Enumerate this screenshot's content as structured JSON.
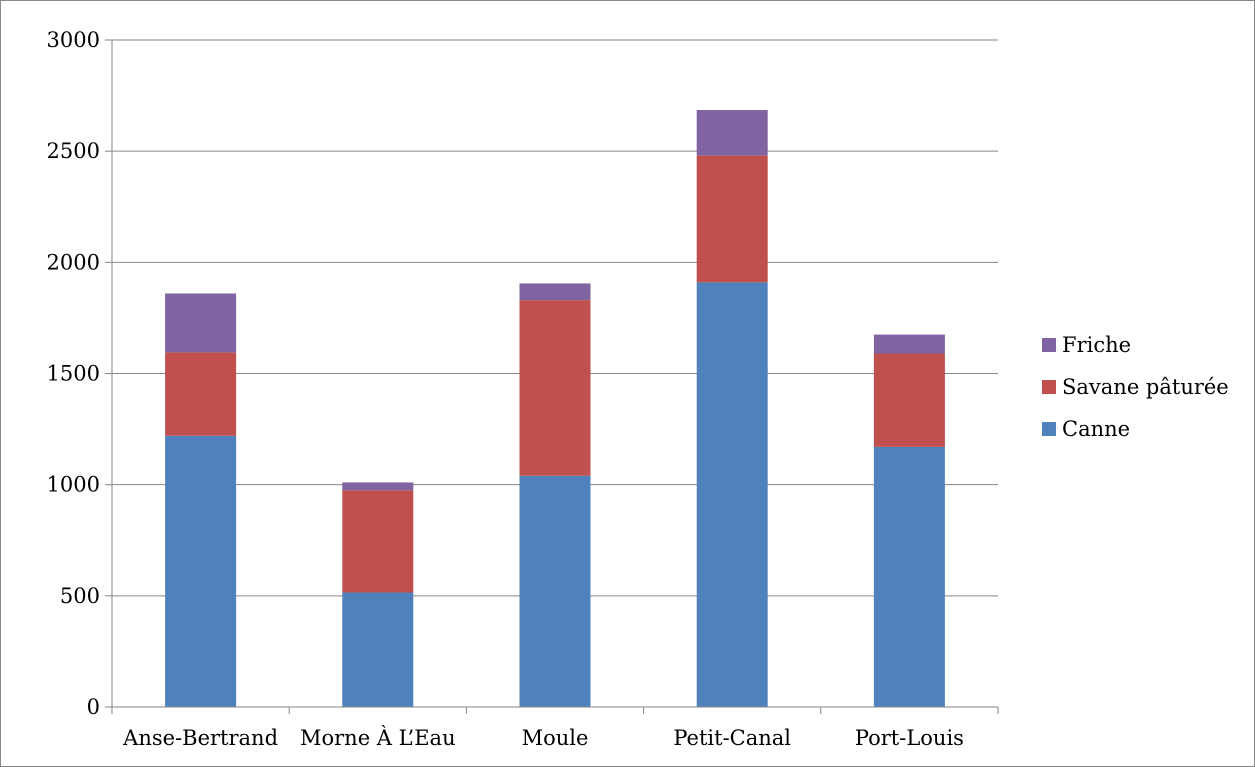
{
  "chart_data": {
    "type": "bar",
    "stacked": true,
    "categories": [
      "Anse-Bertrand",
      "Morne À L’Eau",
      "Moule",
      "Petit-Canal",
      "Port-Louis"
    ],
    "series": [
      {
        "name": "Canne",
        "color": "#4F81BD",
        "values": [
          1220,
          515,
          1040,
          1910,
          1170
        ]
      },
      {
        "name": "Savane pâturée",
        "color": "#C0504D",
        "values": [
          375,
          460,
          790,
          570,
          420
        ]
      },
      {
        "name": "Friche",
        "color": "#8064A2",
        "values": [
          265,
          35,
          75,
          205,
          85
        ]
      }
    ],
    "yticks": [
      "0",
      "500",
      "1000",
      "1500",
      "2000",
      "2500",
      "3000"
    ],
    "ylim": [
      0,
      3000
    ],
    "grid": true,
    "legend": "right",
    "title": "",
    "xlabel": "",
    "ylabel": ""
  }
}
